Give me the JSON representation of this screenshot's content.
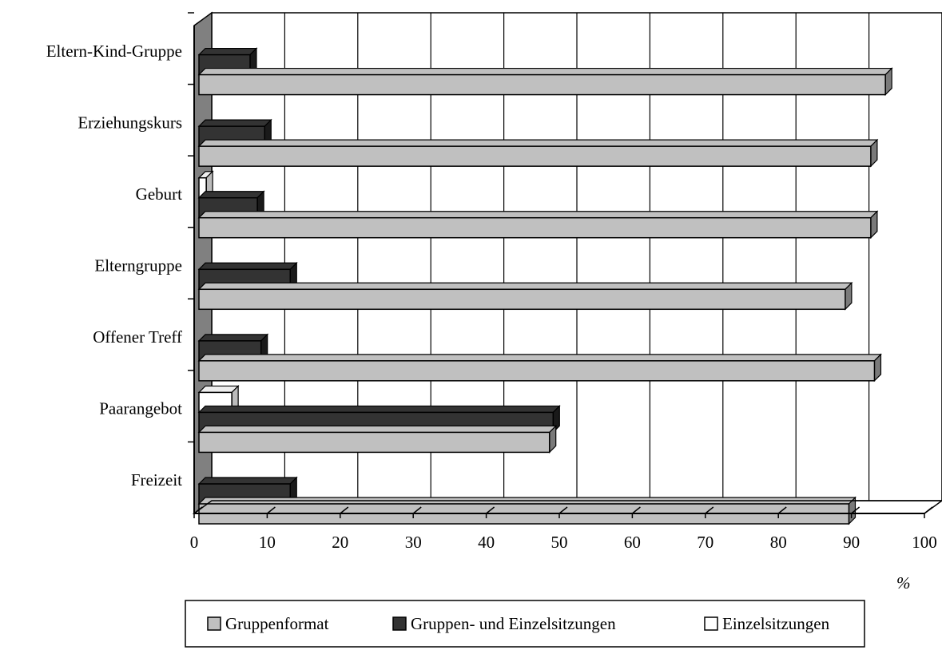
{
  "chart_data": {
    "type": "bar",
    "orientation": "horizontal",
    "three_d": true,
    "categories": [
      "Freizeit",
      "Paarangebot",
      "Offener Treff",
      "Elterngruppe",
      "Geburt",
      "Erziehungskurs",
      "Eltern-Kind-Gruppe"
    ],
    "series": [
      {
        "name": "Gruppenformat",
        "color": "#c0c0c0",
        "values": [
          89,
          48,
          92.5,
          88.5,
          92,
          92,
          94
        ]
      },
      {
        "name": "Gruppen- und Einzelsitzungen",
        "color": "#333333",
        "values": [
          12.5,
          48.5,
          8.5,
          12.5,
          8,
          9,
          7
        ]
      },
      {
        "name": "Einzelsitzungen",
        "color": "#ffffff",
        "values": [
          0,
          4.5,
          0,
          0,
          1,
          0,
          0
        ]
      }
    ],
    "x_ticks": [
      "0",
      "10",
      "20",
      "30",
      "40",
      "50",
      "60",
      "70",
      "80",
      "90",
      "100"
    ],
    "xlim": [
      0,
      100
    ],
    "x_unit": "%",
    "grid": true,
    "legend_position": "bottom"
  }
}
